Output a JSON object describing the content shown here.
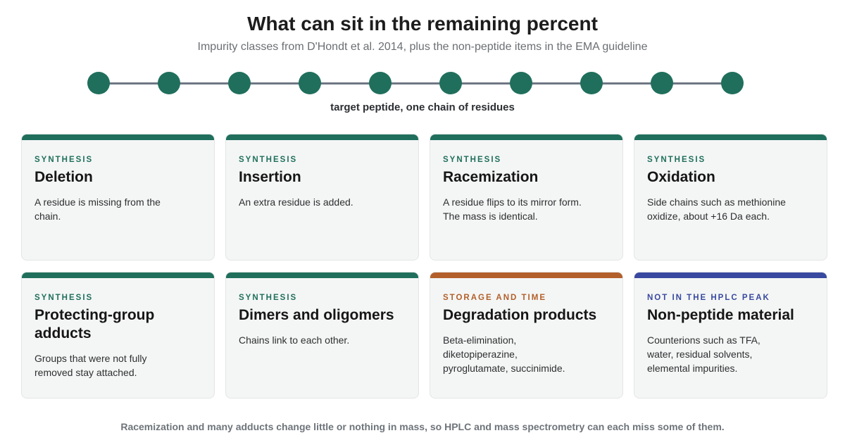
{
  "title": "What can sit in the remaining percent",
  "subtitle": "Impurity classes from D'Hondt et al. 2014, plus the non-peptide items in the EMA guideline",
  "chain": {
    "residue_count": 10,
    "residue_color": "#1f6f5c",
    "caption": "target peptide, one chain of residues"
  },
  "colors": {
    "synthesis": "#1f6f5c",
    "storage": "#b35f2b",
    "non_peptide": "#3949a0"
  },
  "cards": [
    {
      "category": "SYNTHESIS",
      "kind": "synthesis",
      "name": "Deletion",
      "description": "A residue is missing from the chain."
    },
    {
      "category": "SYNTHESIS",
      "kind": "synthesis",
      "name": "Insertion",
      "description": "An extra residue is added."
    },
    {
      "category": "SYNTHESIS",
      "kind": "synthesis",
      "name": "Racemization",
      "description": "A residue flips to its mirror form. The mass is identical."
    },
    {
      "category": "SYNTHESIS",
      "kind": "synthesis",
      "name": "Oxidation",
      "description": "Side chains such as methionine oxidize, about +16 Da each."
    },
    {
      "category": "SYNTHESIS",
      "kind": "synthesis",
      "name": "Protecting-group adducts",
      "description": "Groups that were not fully removed stay attached."
    },
    {
      "category": "SYNTHESIS",
      "kind": "synthesis",
      "name": "Dimers and oligomers",
      "description": "Chains link to each other."
    },
    {
      "category": "STORAGE AND TIME",
      "kind": "storage",
      "name": "Degradation products",
      "description": "Beta-elimination, diketopiperazine, pyroglutamate, succinimide."
    },
    {
      "category": "NOT IN THE HPLC PEAK",
      "kind": "non_peptide",
      "name": "Non-peptide material",
      "description": "Counterions such as TFA, water, residual solvents, elemental impurities."
    }
  ],
  "footer": "Racemization and many adducts change little or nothing in mass, so HPLC and mass spectrometry can each miss some of them."
}
